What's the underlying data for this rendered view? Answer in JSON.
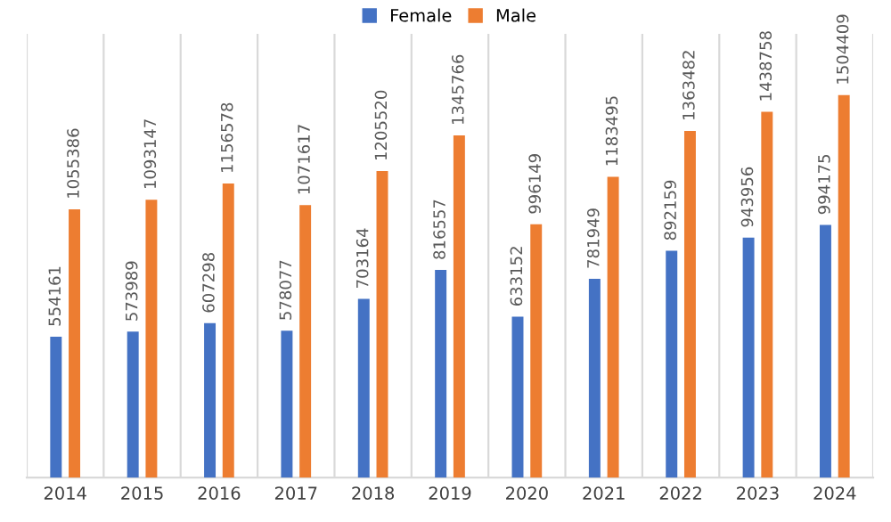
{
  "chart_data": {
    "type": "bar",
    "categories": [
      "2014",
      "2015",
      "2016",
      "2017",
      "2018",
      "2019",
      "2020",
      "2021",
      "2022",
      "2023",
      "2024"
    ],
    "series": [
      {
        "name": "Female",
        "color": "#4472c4",
        "values": [
          554161,
          573989,
          607298,
          578077,
          703164,
          816557,
          633152,
          781949,
          892159,
          943956,
          994175
        ]
      },
      {
        "name": "Male",
        "color": "#ed7d31",
        "values": [
          1055386,
          1093147,
          1156578,
          1071617,
          1205520,
          1345766,
          996149,
          1183495,
          1363482,
          1438758,
          1504409
        ]
      }
    ],
    "data_labels": true,
    "grid": "x",
    "legend": "top",
    "tick_labels": "x"
  }
}
